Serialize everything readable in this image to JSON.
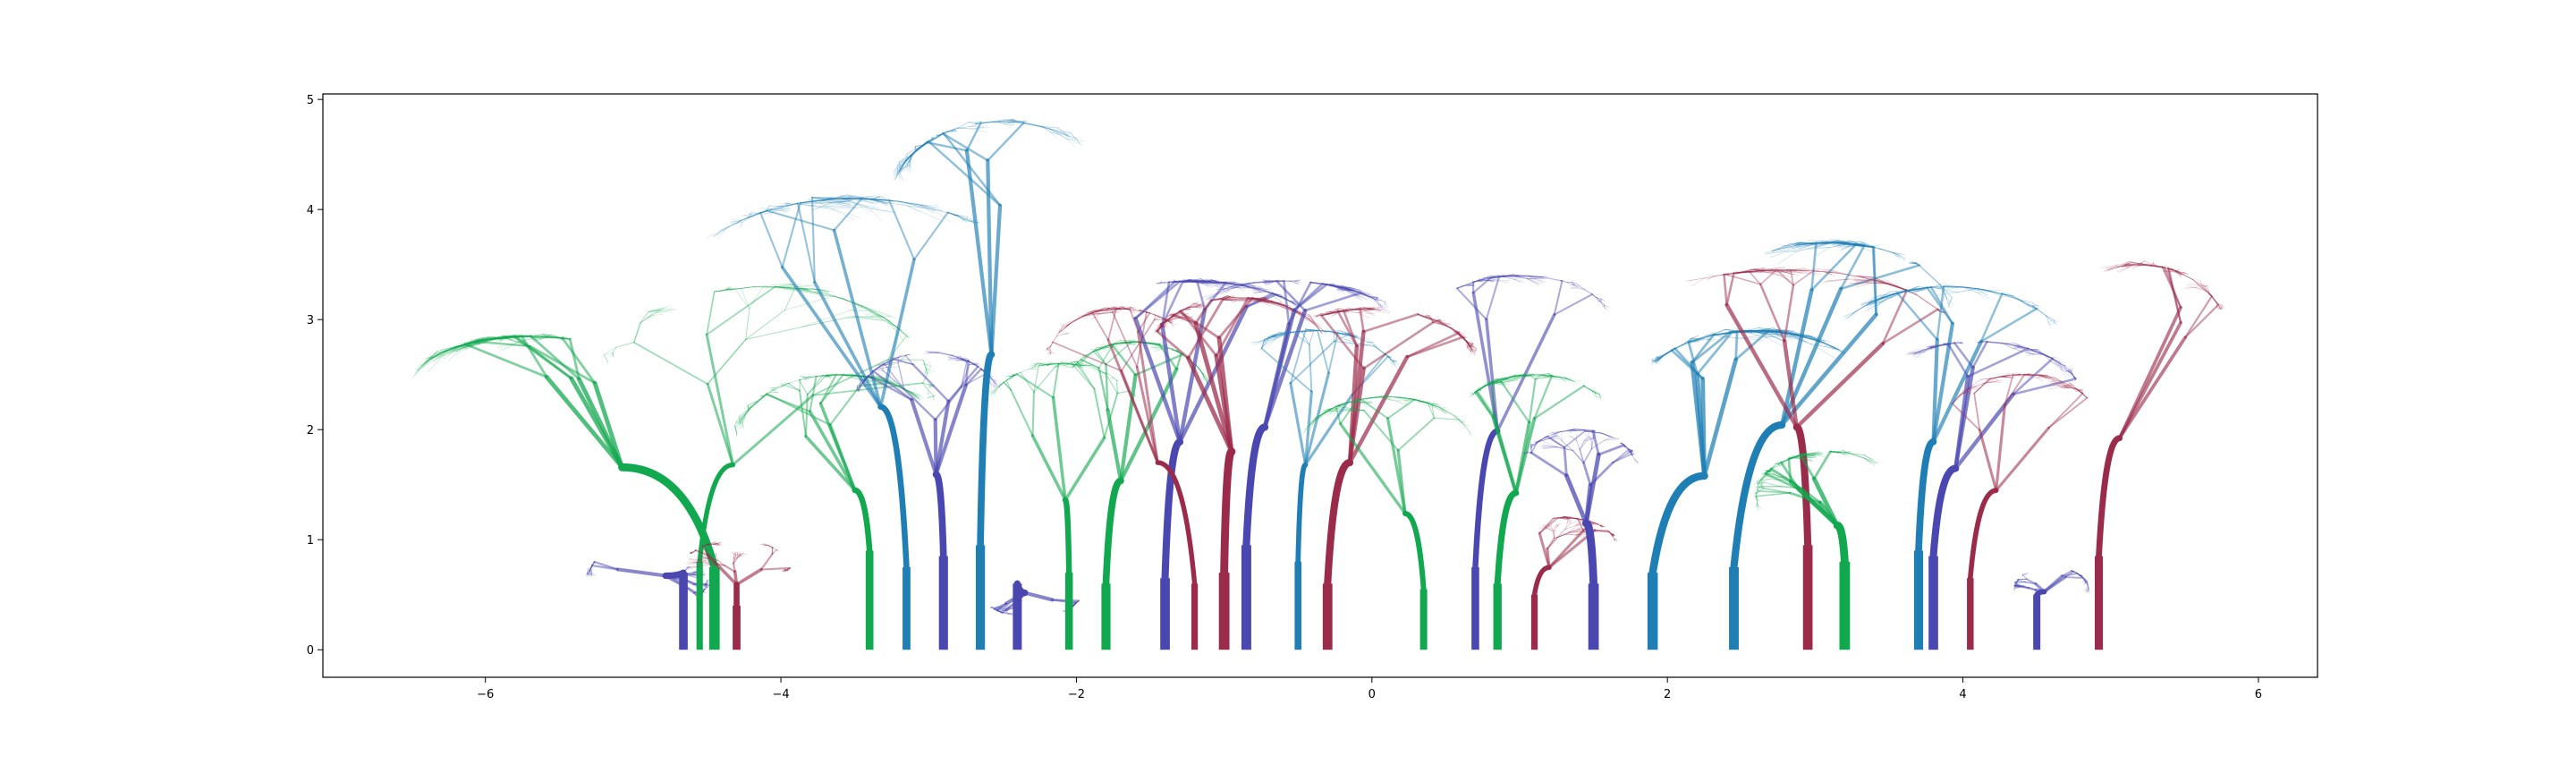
{
  "chart_data": {
    "type": "line",
    "title": "",
    "xlabel": "",
    "ylabel": "",
    "xlim": [
      -7.1,
      6.4
    ],
    "ylim": [
      -0.25,
      5.05
    ],
    "grid": false,
    "legend": "none",
    "xticks": [
      -6,
      -4,
      -2,
      0,
      2,
      4,
      6
    ],
    "xtick_labels": [
      "−6",
      "−4",
      "−2",
      "0",
      "2",
      "4",
      "6"
    ],
    "yticks": [
      0,
      1,
      2,
      3,
      4,
      5
    ],
    "ytick_labels": [
      "0",
      "1",
      "2",
      "3",
      "4",
      "5"
    ],
    "colors": [
      "#4a48b0",
      "#12a84f",
      "#9b2b4b",
      "#1f7fb5"
    ],
    "series": [
      {
        "trunk_x": -4.66,
        "trunk_height": 0.7,
        "color": "#4a48b0",
        "crown_center": [
          -4.9,
          0.65
        ],
        "crown_extent": [
          0.4,
          0.35
        ]
      },
      {
        "trunk_x": -4.55,
        "trunk_height": 0.8,
        "color": "#12a84f",
        "crown_center": [
          -4.1,
          2.4
        ],
        "crown_extent": [
          1.1,
          0.9
        ]
      },
      {
        "trunk_x": -4.45,
        "trunk_height": 0.75,
        "color": "#12a84f",
        "crown_center": [
          -5.7,
          2.4
        ],
        "crown_extent": [
          0.8,
          0.45
        ]
      },
      {
        "trunk_x": -4.3,
        "trunk_height": 0.4,
        "color": "#9b2b4b",
        "crown_center": [
          -4.3,
          0.75
        ],
        "crown_extent": [
          0.35,
          0.25
        ]
      },
      {
        "trunk_x": -3.4,
        "trunk_height": 0.9,
        "color": "#12a84f",
        "crown_center": [
          -3.6,
          1.9
        ],
        "crown_extent": [
          0.7,
          0.6
        ]
      },
      {
        "trunk_x": -3.15,
        "trunk_height": 0.75,
        "color": "#1f7fb5",
        "crown_center": [
          -3.5,
          3.4
        ],
        "crown_extent": [
          1.1,
          0.7
        ]
      },
      {
        "trunk_x": -2.9,
        "trunk_height": 0.85,
        "color": "#4a48b0",
        "crown_center": [
          -3.0,
          2.2
        ],
        "crown_extent": [
          0.5,
          0.5
        ]
      },
      {
        "trunk_x": -2.65,
        "trunk_height": 0.95,
        "color": "#1f7fb5",
        "crown_center": [
          -2.5,
          4.1
        ],
        "crown_extent": [
          0.75,
          0.7
        ]
      },
      {
        "trunk_x": -2.4,
        "trunk_height": 0.6,
        "color": "#4a48b0",
        "crown_center": [
          -2.3,
          0.45
        ],
        "crown_extent": [
          0.3,
          0.15
        ]
      },
      {
        "trunk_x": -2.05,
        "trunk_height": 0.7,
        "color": "#12a84f",
        "crown_center": [
          -2.1,
          1.9
        ],
        "crown_extent": [
          0.6,
          0.7
        ]
      },
      {
        "trunk_x": -1.8,
        "trunk_height": 0.6,
        "color": "#12a84f",
        "crown_center": [
          -1.6,
          2.3
        ],
        "crown_extent": [
          0.5,
          0.5
        ]
      },
      {
        "trunk_x": -1.4,
        "trunk_height": 0.65,
        "color": "#4a48b0",
        "crown_center": [
          -1.2,
          2.9
        ],
        "crown_extent": [
          0.8,
          0.45
        ]
      },
      {
        "trunk_x": -1.2,
        "trunk_height": 0.6,
        "color": "#9b2b4b",
        "crown_center": [
          -1.7,
          2.6
        ],
        "crown_extent": [
          0.5,
          0.5
        ]
      },
      {
        "trunk_x": -1.0,
        "trunk_height": 0.7,
        "color": "#9b2b4b",
        "crown_center": [
          -0.9,
          2.7
        ],
        "crown_extent": [
          0.6,
          0.5
        ]
      },
      {
        "trunk_x": -0.85,
        "trunk_height": 0.95,
        "color": "#4a48b0",
        "crown_center": [
          -0.6,
          2.9
        ],
        "crown_extent": [
          0.8,
          0.45
        ]
      },
      {
        "trunk_x": -0.5,
        "trunk_height": 0.8,
        "color": "#1f7fb5",
        "crown_center": [
          -0.4,
          2.4
        ],
        "crown_extent": [
          0.6,
          0.5
        ]
      },
      {
        "trunk_x": -0.3,
        "trunk_height": 0.6,
        "color": "#9b2b4b",
        "crown_center": [
          0.0,
          2.6
        ],
        "crown_extent": [
          0.7,
          0.5
        ]
      },
      {
        "trunk_x": 0.35,
        "trunk_height": 0.55,
        "color": "#12a84f",
        "crown_center": [
          0.1,
          1.8
        ],
        "crown_extent": [
          0.6,
          0.5
        ]
      },
      {
        "trunk_x": 0.7,
        "trunk_height": 0.75,
        "color": "#4a48b0",
        "crown_center": [
          1.0,
          3.0
        ],
        "crown_extent": [
          0.6,
          0.4
        ]
      },
      {
        "trunk_x": 0.85,
        "trunk_height": 0.6,
        "color": "#12a84f",
        "crown_center": [
          1.1,
          2.1
        ],
        "crown_extent": [
          0.5,
          0.4
        ]
      },
      {
        "trunk_x": 1.1,
        "trunk_height": 0.5,
        "color": "#9b2b4b",
        "crown_center": [
          1.3,
          0.95
        ],
        "crown_extent": [
          0.35,
          0.25
        ]
      },
      {
        "trunk_x": 1.5,
        "trunk_height": 0.6,
        "color": "#4a48b0",
        "crown_center": [
          1.4,
          1.6
        ],
        "crown_extent": [
          0.4,
          0.4
        ]
      },
      {
        "trunk_x": 1.9,
        "trunk_height": 0.7,
        "color": "#1f7fb5",
        "crown_center": [
          2.6,
          2.3
        ],
        "crown_extent": [
          0.8,
          0.6
        ]
      },
      {
        "trunk_x": 2.45,
        "trunk_height": 0.75,
        "color": "#1f7fb5",
        "crown_center": [
          3.1,
          3.1
        ],
        "crown_extent": [
          0.8,
          0.6
        ]
      },
      {
        "trunk_x": 2.95,
        "trunk_height": 0.95,
        "color": "#9b2b4b",
        "crown_center": [
          2.8,
          2.9
        ],
        "crown_extent": [
          1.1,
          0.55
        ]
      },
      {
        "trunk_x": 3.2,
        "trunk_height": 0.8,
        "color": "#12a84f",
        "crown_center": [
          3.1,
          1.4
        ],
        "crown_extent": [
          0.5,
          0.4
        ]
      },
      {
        "trunk_x": 3.7,
        "trunk_height": 0.9,
        "color": "#1f7fb5",
        "crown_center": [
          3.9,
          2.7
        ],
        "crown_extent": [
          0.8,
          0.6
        ]
      },
      {
        "trunk_x": 3.8,
        "trunk_height": 0.85,
        "color": "#4a48b0",
        "crown_center": [
          4.1,
          2.3
        ],
        "crown_extent": [
          0.7,
          0.5
        ]
      },
      {
        "trunk_x": 4.05,
        "trunk_height": 0.65,
        "color": "#9b2b4b",
        "crown_center": [
          4.4,
          2.1
        ],
        "crown_extent": [
          0.5,
          0.4
        ]
      },
      {
        "trunk_x": 4.5,
        "trunk_height": 0.5,
        "color": "#4a48b0",
        "crown_center": [
          4.6,
          0.55
        ],
        "crown_extent": [
          0.25,
          0.2
        ]
      },
      {
        "trunk_x": 4.92,
        "trunk_height": 0.85,
        "color": "#9b2b4b",
        "crown_center": [
          5.2,
          2.8
        ],
        "crown_extent": [
          0.6,
          0.7
        ]
      }
    ]
  }
}
